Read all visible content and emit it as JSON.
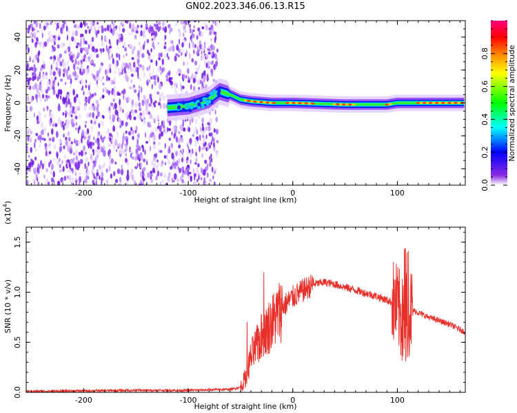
{
  "title": "GN02.2023.346.06.13.R15",
  "chart_data": [
    {
      "type": "heatmap",
      "xlabel": "Height of straight line (km)",
      "ylabel": "Frequency (Hz)",
      "xlim": [
        -255,
        165
      ],
      "ylim": [
        -50,
        50
      ],
      "xticks": [
        -200,
        -100,
        0,
        100
      ],
      "xtick_labels": [
        "-200",
        "-100",
        "0",
        "100"
      ],
      "yticks": [
        -40,
        -20,
        0,
        20,
        40
      ],
      "ytick_labels": [
        "-40",
        "-20",
        "0",
        "20",
        "40"
      ],
      "colorbar": {
        "label": "Normalized spectral amplitude",
        "range": [
          0,
          1
        ],
        "ticks": [
          0.0,
          0.2,
          0.4,
          0.6,
          0.8
        ],
        "tick_labels": [
          "0.0",
          "0.2",
          "0.4",
          "0.6",
          "0.8"
        ],
        "colors": [
          "#ffffff",
          "#8a2be2",
          "#0000ff",
          "#00ffff",
          "#00ff00",
          "#ffff00",
          "#ff8000",
          "#ff0000",
          "#ff0080"
        ]
      },
      "features": {
        "noise_region_x": [
          -255,
          -80
        ],
        "track_center_freq": [
          [
            -120,
            -3
          ],
          [
            -100,
            -2
          ],
          [
            -80,
            2
          ],
          [
            -70,
            7
          ],
          [
            -60,
            5
          ],
          [
            -50,
            2
          ],
          [
            -40,
            1
          ],
          [
            -20,
            0
          ],
          [
            0,
            0
          ],
          [
            50,
            -1
          ],
          [
            90,
            -1
          ],
          [
            100,
            0
          ],
          [
            165,
            0
          ]
        ]
      }
    },
    {
      "type": "line",
      "xlabel": "Height of straight line (km)",
      "ylabel": "SNR (10 * v/v)",
      "y_multiplier_label": "(x10",
      "y_multiplier_exp": "4",
      "xlim": [
        -255,
        165
      ],
      "ylim": [
        0,
        1.65
      ],
      "xticks": [
        -200,
        -100,
        0,
        100
      ],
      "xtick_labels": [
        "-200",
        "-100",
        "0",
        "100"
      ],
      "yticks": [
        0.0,
        0.5,
        1.0,
        1.5
      ],
      "ytick_labels": [
        "0.0",
        "0.5",
        "1.0",
        "1.5"
      ],
      "series": [
        {
          "color": "#e8302a",
          "x": [
            -255,
            -200,
            -150,
            -100,
            -60,
            -50,
            -45,
            -40,
            -35,
            -30,
            -20,
            -10,
            0,
            10,
            20,
            30,
            40,
            60,
            80,
            95,
            100,
            105,
            110,
            115,
            130,
            150,
            165
          ],
          "y": [
            0.01,
            0.015,
            0.02,
            0.02,
            0.03,
            0.05,
            0.15,
            0.35,
            0.45,
            0.55,
            0.7,
            0.85,
            0.95,
            1.02,
            1.08,
            1.1,
            1.08,
            1.02,
            0.96,
            0.9,
            0.85,
            0.7,
            0.8,
            0.82,
            0.75,
            0.68,
            0.6
          ]
        }
      ]
    }
  ]
}
